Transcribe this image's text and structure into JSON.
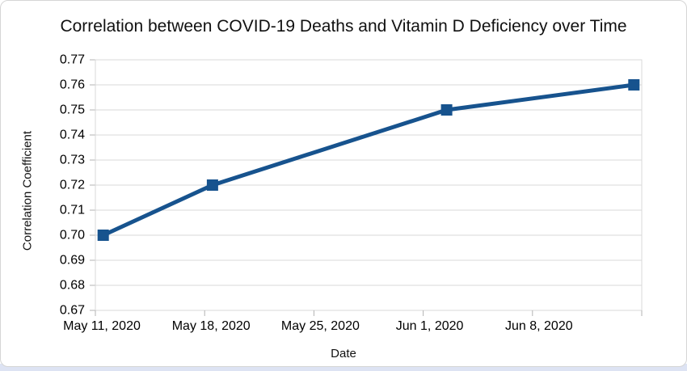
{
  "window": {
    "bottom_strip_color": "#dde3f3",
    "card_background": "#ffffff",
    "card_border_color": "#d5d5d5"
  },
  "chart": {
    "title": "Correlation between COVID-19 Deaths and Vitamin D Deficiency over Time",
    "x_axis_title": "Date",
    "y_axis_title": "Correlation Coefficient"
  },
  "chart_data": {
    "type": "line",
    "title": "Correlation between COVID-19 Deaths and Vitamin D Deficiency over Time",
    "xlabel": "Date",
    "ylabel": "Correlation Coefficient",
    "series_name": "Correlation Coefficient",
    "x_dates": [
      "May 11, 2020",
      "May 18, 2020",
      "Jun 2, 2020",
      "Jun 14, 2020"
    ],
    "x_axis_units": [
      0.5,
      7.5,
      22.5,
      34.5
    ],
    "values": [
      0.7,
      0.72,
      0.75,
      0.76
    ],
    "xlim": [
      0,
      35
    ],
    "ylim": [
      0.67,
      0.77
    ],
    "x_ticks": [
      {
        "pos": 0,
        "label": "May 11, 2020"
      },
      {
        "pos": 7,
        "label": "May 18, 2020"
      },
      {
        "pos": 14,
        "label": "May 25, 2020"
      },
      {
        "pos": 21,
        "label": "Jun 1, 2020"
      },
      {
        "pos": 28,
        "label": "Jun 8, 2020"
      },
      {
        "pos": 35,
        "label": ""
      }
    ],
    "y_ticks": [
      {
        "v": 0.67,
        "label": "0.67"
      },
      {
        "v": 0.68,
        "label": "0.68"
      },
      {
        "v": 0.69,
        "label": "0.69"
      },
      {
        "v": 0.7,
        "label": "0.70"
      },
      {
        "v": 0.71,
        "label": "0.71"
      },
      {
        "v": 0.72,
        "label": "0.72"
      },
      {
        "v": 0.73,
        "label": "0.73"
      },
      {
        "v": 0.74,
        "label": "0.74"
      },
      {
        "v": 0.75,
        "label": "0.75"
      },
      {
        "v": 0.76,
        "label": "0.76"
      },
      {
        "v": 0.77,
        "label": "0.77"
      }
    ],
    "grid": "horizontal",
    "legend": "none",
    "marker_shape": "square",
    "colors": {
      "line": "#17538e",
      "grid": "#d9d9d9",
      "plot_border": "#d9d9d9",
      "tick": "#b3b3b3",
      "text": "#000000"
    }
  }
}
